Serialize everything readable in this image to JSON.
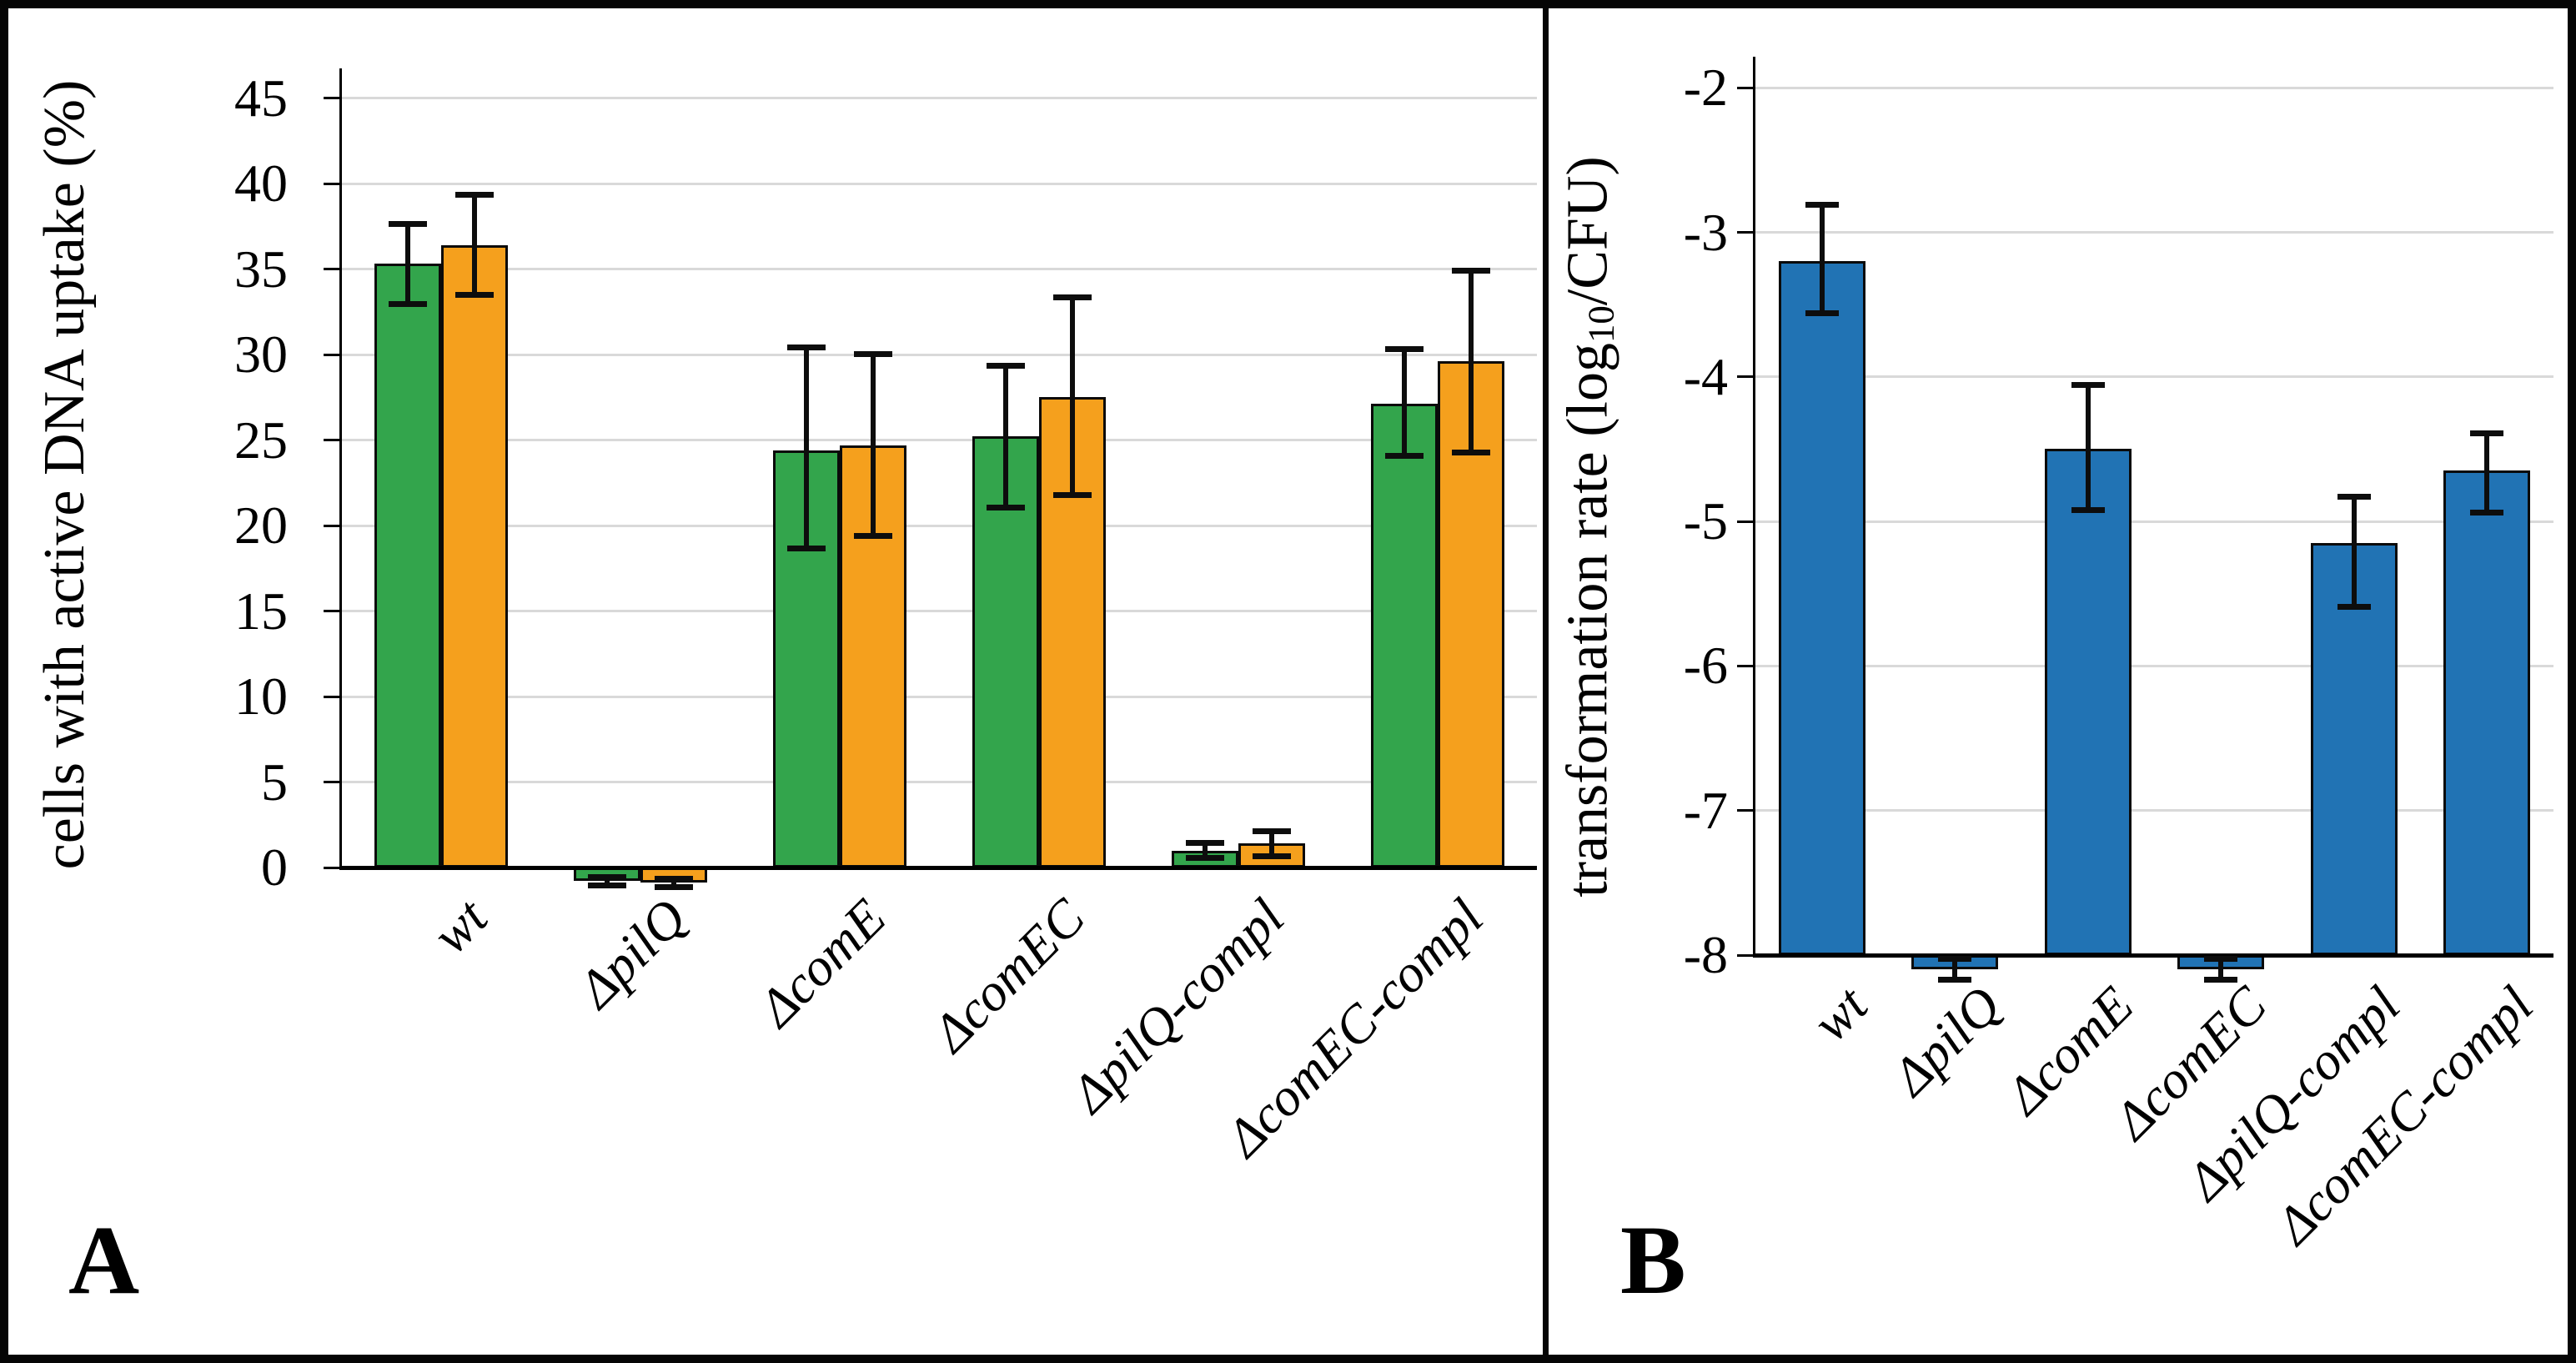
{
  "panel_letters": [
    "A",
    "B"
  ],
  "chart_data": [
    {
      "type": "bar",
      "panel": "A",
      "title": "",
      "xlabel": "",
      "ylabel": "cells with active DNA uptake (%)",
      "categories": [
        "wt",
        "ΔpilQ",
        "ΔcomE",
        "ΔcomEC",
        "ΔpilQ-compl",
        "ΔcomEC-compl"
      ],
      "series": [
        {
          "color": "#33A54C",
          "values": [
            35.3,
            -0.8,
            24.4,
            25.2,
            1.0,
            27.1
          ],
          "err_up": [
            2.4,
            0.3,
            6.1,
            4.2,
            0.5,
            3.3
          ],
          "err_down": [
            2.4,
            0.3,
            5.8,
            4.2,
            0.5,
            3.1
          ]
        },
        {
          "color": "#F5A01D",
          "values": [
            36.4,
            -0.9,
            24.7,
            27.5,
            1.4,
            29.6
          ],
          "err_up": [
            3.0,
            0.3,
            5.4,
            5.9,
            0.8,
            5.4
          ],
          "err_down": [
            3.0,
            0.3,
            5.4,
            5.8,
            0.8,
            5.4
          ]
        }
      ],
      "y_ticks": [
        0,
        5,
        10,
        15,
        20,
        25,
        30,
        35,
        40,
        45
      ],
      "ylim": [
        0,
        45
      ],
      "baseline": 0,
      "grid": true,
      "legend": false,
      "x_tick_rotation_deg": 45
    },
    {
      "type": "bar",
      "panel": "B",
      "title": "",
      "xlabel": "",
      "ylabel": "transformation rate (log10/CFU)",
      "ylabel_parts": {
        "pre": "transformation rate (log",
        "sub": "10",
        "post": "/CFU)"
      },
      "categories": [
        "wt",
        "ΔpilQ",
        "ΔcomE",
        "ΔcomEC",
        "ΔpilQ-compl",
        "ΔcomEC-compl"
      ],
      "series": [
        {
          "color": "#2173B4",
          "values": [
            -3.2,
            -8.1,
            -4.5,
            -8.1,
            -5.15,
            -4.65
          ],
          "err_up": [
            0.4,
            0.08,
            0.45,
            0.08,
            0.33,
            0.27
          ],
          "err_down": [
            0.37,
            0.08,
            0.43,
            0.08,
            0.45,
            0.3
          ]
        }
      ],
      "y_ticks": [
        -2,
        -3,
        -4,
        -5,
        -6,
        -7,
        -8
      ],
      "ylim": [
        -8,
        -2
      ],
      "baseline": -8,
      "grid": true,
      "legend": false,
      "x_tick_rotation_deg": 45
    }
  ],
  "colors": {
    "green_bar": "#33A54C",
    "orange_bar": "#F5A01D",
    "blue_bar": "#2173B4",
    "gridline": "#D9D9D9",
    "axis": "#000000",
    "frame": "#050505"
  }
}
